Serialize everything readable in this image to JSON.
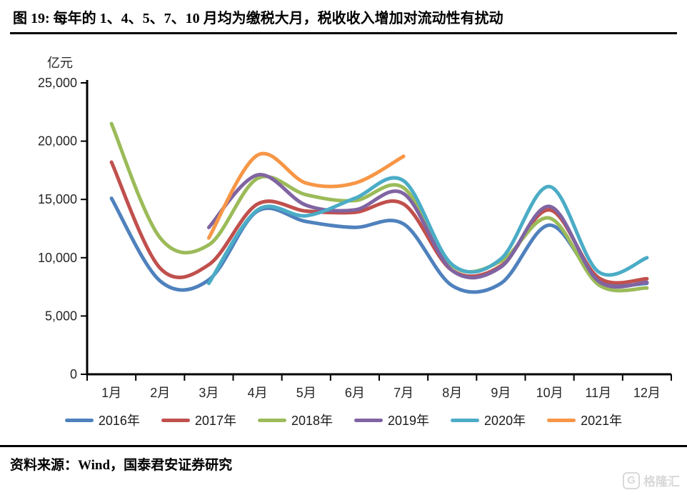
{
  "header": {
    "title": "图 19:  每年的 1、4、5、7、10 月均为缴税大月，税收收入增加对流动性有扰动"
  },
  "chart_data": {
    "type": "line",
    "title": "",
    "unit_label": "亿元",
    "xlabel": "",
    "ylabel": "亿元",
    "categories": [
      "1月",
      "2月",
      "3月",
      "4月",
      "5月",
      "6月",
      "7月",
      "8月",
      "9月",
      "10月",
      "11月",
      "12月"
    ],
    "ylim": [
      0,
      25000
    ],
    "y_ticks": [
      0,
      5000,
      10000,
      15000,
      20000,
      25000
    ],
    "y_tick_labels": [
      "0",
      "5,000",
      "10,000",
      "15,000",
      "20,000",
      "25,000"
    ],
    "grid": false,
    "smoothing": "spline",
    "legend_position": "bottom",
    "series": [
      {
        "name": "2016年",
        "color": "#4F81BD",
        "values": [
          15100,
          8000,
          8100,
          14000,
          13100,
          12600,
          12900,
          7600,
          7800,
          12800,
          8000,
          7800
        ]
      },
      {
        "name": "2017年",
        "color": "#C0504D",
        "values": [
          18200,
          9100,
          9400,
          14600,
          14000,
          13900,
          14600,
          8900,
          9300,
          14100,
          8300,
          8200
        ]
      },
      {
        "name": "2018年",
        "color": "#9BBB59",
        "values": [
          21500,
          11700,
          11100,
          16800,
          15400,
          14900,
          16000,
          9300,
          9700,
          13400,
          7700,
          7400
        ]
      },
      {
        "name": "2019年",
        "color": "#8064A2",
        "values": [
          null,
          null,
          12600,
          17100,
          14500,
          14100,
          15500,
          8900,
          9200,
          14400,
          8000,
          7900
        ]
      },
      {
        "name": "2020年",
        "color": "#4BACC6",
        "values": [
          null,
          null,
          7800,
          14100,
          13600,
          15100,
          16600,
          9400,
          9900,
          16100,
          8800,
          10000
        ]
      },
      {
        "name": "2021年",
        "color": "#F79646",
        "values": [
          null,
          null,
          11700,
          18800,
          16400,
          16400,
          18700,
          null,
          null,
          null,
          null,
          null
        ]
      }
    ]
  },
  "footer": {
    "source": "资料来源：Wind，国泰君安证券研究"
  },
  "watermark": {
    "logo_letter": "G",
    "text": "格隆汇"
  }
}
